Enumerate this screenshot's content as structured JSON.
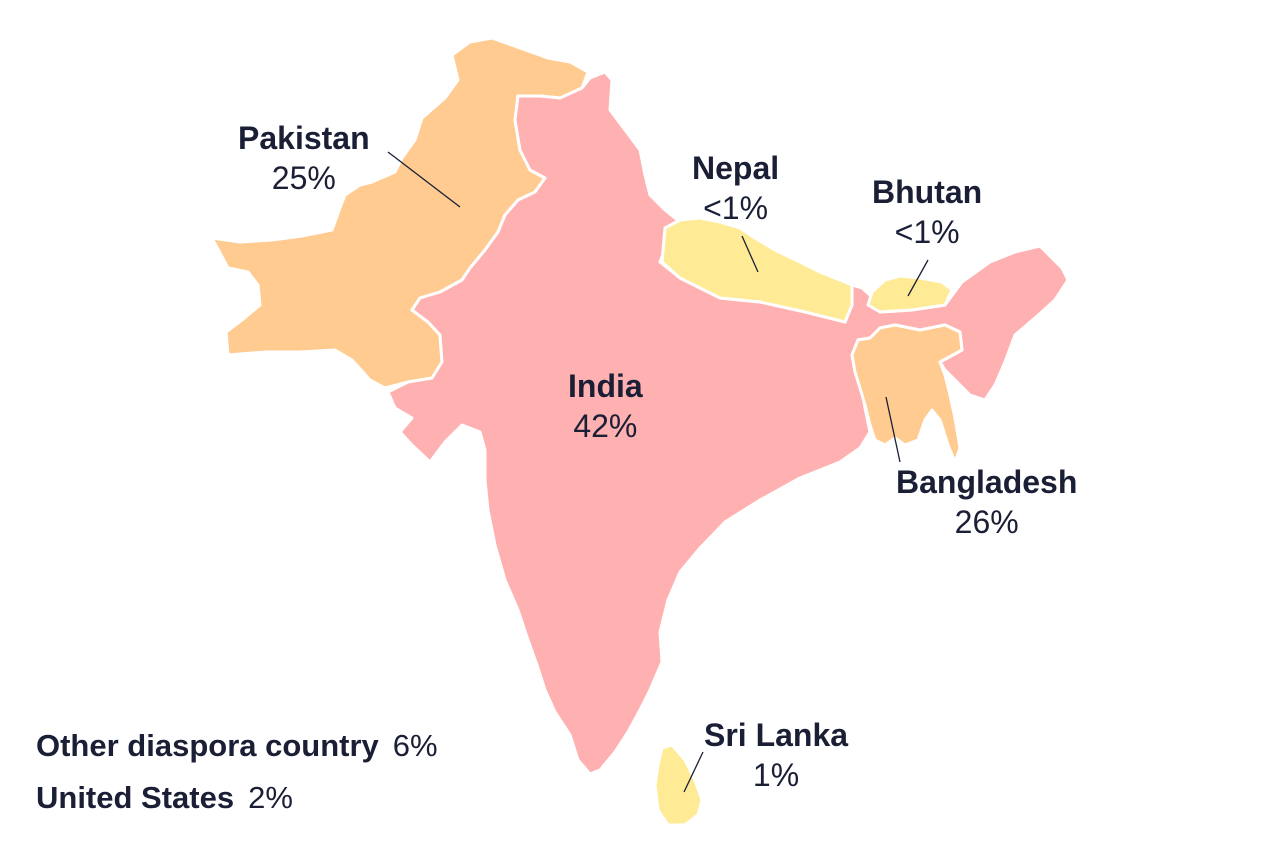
{
  "colors": {
    "high": "#ffb0b0",
    "mid": "#ffcb90",
    "low": "#ffeb96",
    "border": "#ffffff",
    "text": "#1a1f36"
  },
  "regions": [
    {
      "id": "pakistan",
      "name": "Pakistan",
      "value": "25%",
      "shade": "mid"
    },
    {
      "id": "india",
      "name": "India",
      "value": "42%",
      "shade": "high"
    },
    {
      "id": "nepal",
      "name": "Nepal",
      "value": "<1%",
      "shade": "low"
    },
    {
      "id": "bhutan",
      "name": "Bhutan",
      "value": "<1%",
      "shade": "low"
    },
    {
      "id": "bangladesh",
      "name": "Bangladesh",
      "value": "26%",
      "shade": "mid"
    },
    {
      "id": "sri_lanka",
      "name": "Sri Lanka",
      "value": "1%",
      "shade": "low"
    }
  ],
  "other_entries": [
    {
      "name": "Other diaspora country",
      "value": "6%"
    },
    {
      "name": "United States",
      "value": "2%"
    }
  ]
}
